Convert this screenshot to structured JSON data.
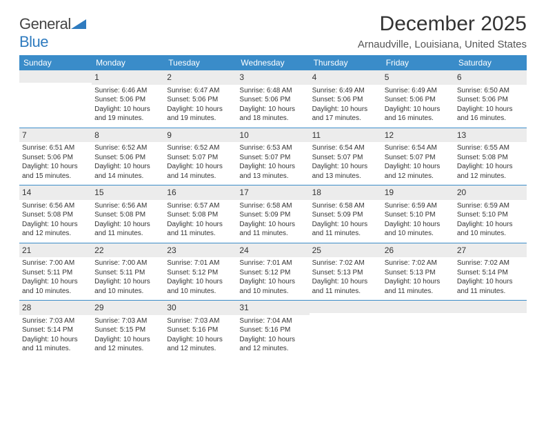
{
  "brand": {
    "part1": "General",
    "part2": "Blue"
  },
  "title": "December 2025",
  "location": "Arnaudville, Louisiana, United States",
  "colors": {
    "header_bg": "#3a8cc9",
    "header_text": "#ffffff",
    "daynum_bg": "#ececec",
    "week_border": "#3a8cc9",
    "text": "#333333",
    "brand_blue": "#2f7bbf"
  },
  "daysOfWeek": [
    "Sunday",
    "Monday",
    "Tuesday",
    "Wednesday",
    "Thursday",
    "Friday",
    "Saturday"
  ],
  "weeks": [
    [
      {
        "day": "",
        "sunrise": "",
        "sunset": "",
        "daylight": ""
      },
      {
        "day": "1",
        "sunrise": "Sunrise: 6:46 AM",
        "sunset": "Sunset: 5:06 PM",
        "daylight": "Daylight: 10 hours and 19 minutes."
      },
      {
        "day": "2",
        "sunrise": "Sunrise: 6:47 AM",
        "sunset": "Sunset: 5:06 PM",
        "daylight": "Daylight: 10 hours and 19 minutes."
      },
      {
        "day": "3",
        "sunrise": "Sunrise: 6:48 AM",
        "sunset": "Sunset: 5:06 PM",
        "daylight": "Daylight: 10 hours and 18 minutes."
      },
      {
        "day": "4",
        "sunrise": "Sunrise: 6:49 AM",
        "sunset": "Sunset: 5:06 PM",
        "daylight": "Daylight: 10 hours and 17 minutes."
      },
      {
        "day": "5",
        "sunrise": "Sunrise: 6:49 AM",
        "sunset": "Sunset: 5:06 PM",
        "daylight": "Daylight: 10 hours and 16 minutes."
      },
      {
        "day": "6",
        "sunrise": "Sunrise: 6:50 AM",
        "sunset": "Sunset: 5:06 PM",
        "daylight": "Daylight: 10 hours and 16 minutes."
      }
    ],
    [
      {
        "day": "7",
        "sunrise": "Sunrise: 6:51 AM",
        "sunset": "Sunset: 5:06 PM",
        "daylight": "Daylight: 10 hours and 15 minutes."
      },
      {
        "day": "8",
        "sunrise": "Sunrise: 6:52 AM",
        "sunset": "Sunset: 5:06 PM",
        "daylight": "Daylight: 10 hours and 14 minutes."
      },
      {
        "day": "9",
        "sunrise": "Sunrise: 6:52 AM",
        "sunset": "Sunset: 5:07 PM",
        "daylight": "Daylight: 10 hours and 14 minutes."
      },
      {
        "day": "10",
        "sunrise": "Sunrise: 6:53 AM",
        "sunset": "Sunset: 5:07 PM",
        "daylight": "Daylight: 10 hours and 13 minutes."
      },
      {
        "day": "11",
        "sunrise": "Sunrise: 6:54 AM",
        "sunset": "Sunset: 5:07 PM",
        "daylight": "Daylight: 10 hours and 13 minutes."
      },
      {
        "day": "12",
        "sunrise": "Sunrise: 6:54 AM",
        "sunset": "Sunset: 5:07 PM",
        "daylight": "Daylight: 10 hours and 12 minutes."
      },
      {
        "day": "13",
        "sunrise": "Sunrise: 6:55 AM",
        "sunset": "Sunset: 5:08 PM",
        "daylight": "Daylight: 10 hours and 12 minutes."
      }
    ],
    [
      {
        "day": "14",
        "sunrise": "Sunrise: 6:56 AM",
        "sunset": "Sunset: 5:08 PM",
        "daylight": "Daylight: 10 hours and 12 minutes."
      },
      {
        "day": "15",
        "sunrise": "Sunrise: 6:56 AM",
        "sunset": "Sunset: 5:08 PM",
        "daylight": "Daylight: 10 hours and 11 minutes."
      },
      {
        "day": "16",
        "sunrise": "Sunrise: 6:57 AM",
        "sunset": "Sunset: 5:08 PM",
        "daylight": "Daylight: 10 hours and 11 minutes."
      },
      {
        "day": "17",
        "sunrise": "Sunrise: 6:58 AM",
        "sunset": "Sunset: 5:09 PM",
        "daylight": "Daylight: 10 hours and 11 minutes."
      },
      {
        "day": "18",
        "sunrise": "Sunrise: 6:58 AM",
        "sunset": "Sunset: 5:09 PM",
        "daylight": "Daylight: 10 hours and 11 minutes."
      },
      {
        "day": "19",
        "sunrise": "Sunrise: 6:59 AM",
        "sunset": "Sunset: 5:10 PM",
        "daylight": "Daylight: 10 hours and 10 minutes."
      },
      {
        "day": "20",
        "sunrise": "Sunrise: 6:59 AM",
        "sunset": "Sunset: 5:10 PM",
        "daylight": "Daylight: 10 hours and 10 minutes."
      }
    ],
    [
      {
        "day": "21",
        "sunrise": "Sunrise: 7:00 AM",
        "sunset": "Sunset: 5:11 PM",
        "daylight": "Daylight: 10 hours and 10 minutes."
      },
      {
        "day": "22",
        "sunrise": "Sunrise: 7:00 AM",
        "sunset": "Sunset: 5:11 PM",
        "daylight": "Daylight: 10 hours and 10 minutes."
      },
      {
        "day": "23",
        "sunrise": "Sunrise: 7:01 AM",
        "sunset": "Sunset: 5:12 PM",
        "daylight": "Daylight: 10 hours and 10 minutes."
      },
      {
        "day": "24",
        "sunrise": "Sunrise: 7:01 AM",
        "sunset": "Sunset: 5:12 PM",
        "daylight": "Daylight: 10 hours and 10 minutes."
      },
      {
        "day": "25",
        "sunrise": "Sunrise: 7:02 AM",
        "sunset": "Sunset: 5:13 PM",
        "daylight": "Daylight: 10 hours and 11 minutes."
      },
      {
        "day": "26",
        "sunrise": "Sunrise: 7:02 AM",
        "sunset": "Sunset: 5:13 PM",
        "daylight": "Daylight: 10 hours and 11 minutes."
      },
      {
        "day": "27",
        "sunrise": "Sunrise: 7:02 AM",
        "sunset": "Sunset: 5:14 PM",
        "daylight": "Daylight: 10 hours and 11 minutes."
      }
    ],
    [
      {
        "day": "28",
        "sunrise": "Sunrise: 7:03 AM",
        "sunset": "Sunset: 5:14 PM",
        "daylight": "Daylight: 10 hours and 11 minutes."
      },
      {
        "day": "29",
        "sunrise": "Sunrise: 7:03 AM",
        "sunset": "Sunset: 5:15 PM",
        "daylight": "Daylight: 10 hours and 12 minutes."
      },
      {
        "day": "30",
        "sunrise": "Sunrise: 7:03 AM",
        "sunset": "Sunset: 5:16 PM",
        "daylight": "Daylight: 10 hours and 12 minutes."
      },
      {
        "day": "31",
        "sunrise": "Sunrise: 7:04 AM",
        "sunset": "Sunset: 5:16 PM",
        "daylight": "Daylight: 10 hours and 12 minutes."
      },
      {
        "day": "",
        "sunrise": "",
        "sunset": "",
        "daylight": ""
      },
      {
        "day": "",
        "sunrise": "",
        "sunset": "",
        "daylight": ""
      },
      {
        "day": "",
        "sunrise": "",
        "sunset": "",
        "daylight": ""
      }
    ]
  ]
}
